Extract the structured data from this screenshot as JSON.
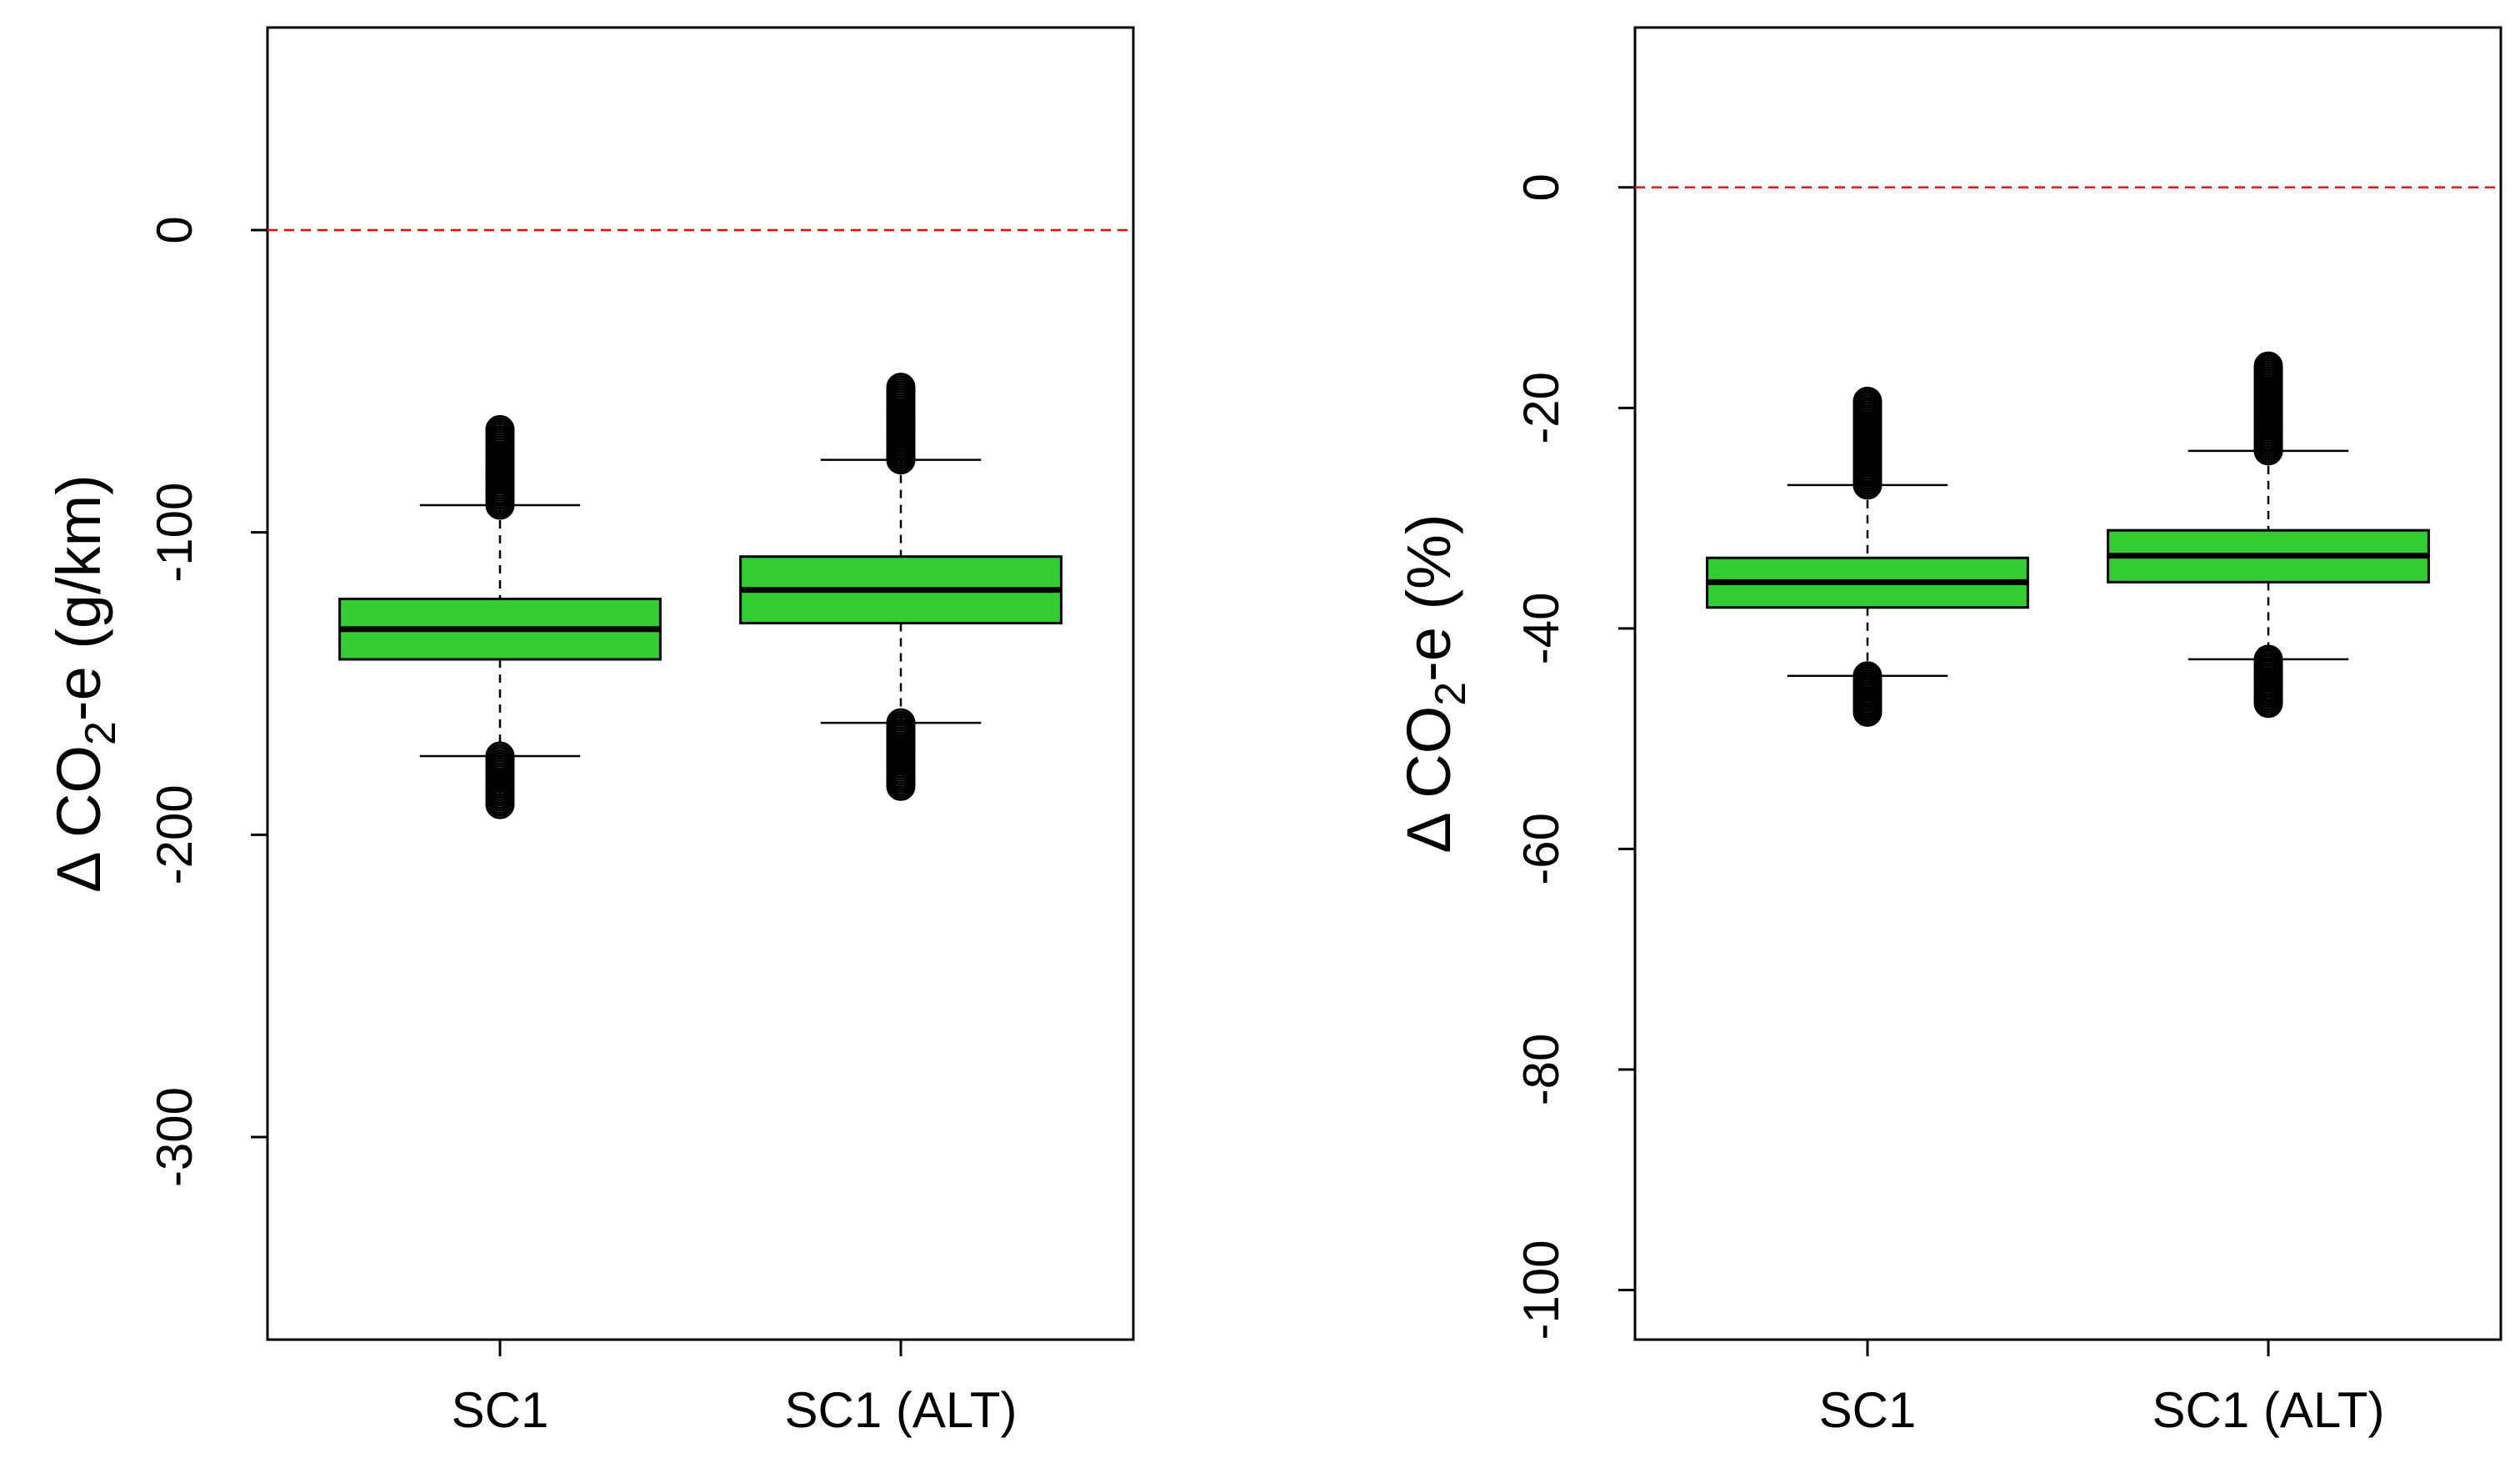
{
  "chart_data": [
    {
      "type": "box",
      "title": "",
      "ylabel": {
        "prefix": "Δ CO",
        "subscript": "2",
        "suffix": "-e (g/km)"
      },
      "xlabel": "",
      "ylim": [
        -367,
        67
      ],
      "yticks": [
        0,
        -100,
        -200,
        -300
      ],
      "ytick_labels": [
        "0",
        "-100",
        "-200",
        "-300"
      ],
      "reference_line": {
        "y": 0,
        "style": "dashed",
        "color": "#ff0000"
      },
      "box_color": "#33cc33",
      "categories": [
        "SC1",
        "SC1 (ALT)"
      ],
      "boxes": [
        {
          "category": "SC1",
          "lower_whisker": -174,
          "q1": -142,
          "median": -132,
          "q3": -122,
          "upper_whisker": -91,
          "outliers_high_range": [
            -91,
            -66
          ],
          "outliers_low_range": [
            -190,
            -174
          ]
        },
        {
          "category": "SC1 (ALT)",
          "lower_whisker": -163,
          "q1": -130,
          "median": -119,
          "q3": -108,
          "upper_whisker": -76,
          "outliers_high_range": [
            -76,
            -52
          ],
          "outliers_low_range": [
            -184,
            -163
          ]
        }
      ]
    },
    {
      "type": "box",
      "title": "",
      "ylabel": {
        "prefix": "Δ CO",
        "subscript": "2",
        "suffix": "-e (%)"
      },
      "xlabel": "",
      "ylim": [
        -104.5,
        14.5
      ],
      "yticks": [
        0,
        -20,
        -40,
        -60,
        -80,
        -100
      ],
      "ytick_labels": [
        "0",
        "-20",
        "-40",
        "-60",
        "-80",
        "-100"
      ],
      "reference_line": {
        "y": 0,
        "style": "dashed",
        "color": "#ff0000"
      },
      "box_color": "#33cc33",
      "categories": [
        "SC1",
        "SC1 (ALT)"
      ],
      "boxes": [
        {
          "category": "SC1",
          "lower_whisker": -44.3,
          "q1": -38.1,
          "median": -35.8,
          "q3": -33.6,
          "upper_whisker": -27.0,
          "outliers_high_range": [
            -27.0,
            -19.4
          ],
          "outliers_low_range": [
            -47.6,
            -44.3
          ]
        },
        {
          "category": "SC1 (ALT)",
          "lower_whisker": -42.8,
          "q1": -35.8,
          "median": -33.4,
          "q3": -31.1,
          "upper_whisker": -23.9,
          "outliers_high_range": [
            -23.9,
            -16.2
          ],
          "outliers_low_range": [
            -46.8,
            -42.8
          ]
        }
      ]
    }
  ]
}
